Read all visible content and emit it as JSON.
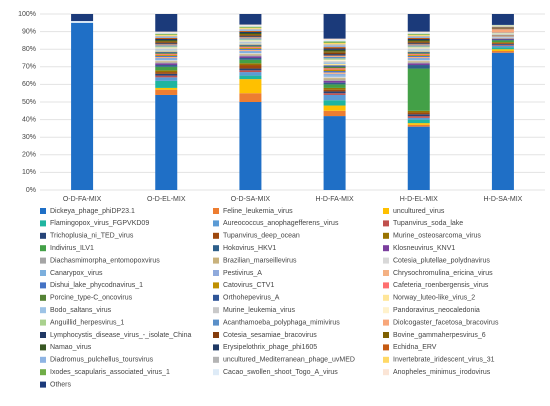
{
  "chart_data": {
    "type": "stacked_bar",
    "categories": [
      "O-D-FA-MIX",
      "O-D-EL-MIX",
      "O-D-SA-MIX",
      "H-D-FA-MIX",
      "H-D-EL-MIX",
      "H-D-SA-MIX"
    ],
    "ylim": [
      0,
      100
    ],
    "yticks": [
      {
        "value": 0,
        "label": "0%"
      },
      {
        "value": 10,
        "label": "10%"
      },
      {
        "value": 20,
        "label": "20%"
      },
      {
        "value": 30,
        "label": "30%"
      },
      {
        "value": 40,
        "label": "40%"
      },
      {
        "value": 50,
        "label": "50%"
      },
      {
        "value": 60,
        "label": "60%"
      },
      {
        "value": 70,
        "label": "70%"
      },
      {
        "value": 80,
        "label": "80%"
      },
      {
        "value": 90,
        "label": "90%"
      },
      {
        "value": 100,
        "label": "100%"
      }
    ],
    "grid": true,
    "series": [
      {
        "name": "Dickeya_phage_phiDP23.1",
        "color": "#1f6fc6",
        "values": [
          95,
          54,
          50,
          42,
          36,
          78
        ]
      },
      {
        "name": "Feline_leukemia_virus",
        "color": "#ed7d31",
        "values": [
          0,
          3,
          5,
          3,
          1,
          1
        ]
      },
      {
        "name": "uncultured_virus",
        "color": "#ffc000",
        "values": [
          0,
          1,
          8,
          3,
          1,
          1
        ]
      },
      {
        "name": "Flamingopox_virus_FGPVKD09",
        "color": "#1fb5a0",
        "values": [
          0,
          4,
          2,
          3,
          2,
          1
        ]
      },
      {
        "name": "Aureococcus_anophagefferens_virus",
        "color": "#5b9bd5",
        "values": [
          0,
          2,
          2,
          3,
          1,
          1
        ]
      },
      {
        "name": "Tupanvirus_soda_lake",
        "color": "#c0504d",
        "values": [
          0,
          1,
          1,
          1,
          1,
          0.5
        ]
      },
      {
        "name": "Trichoplusia_ni_TED_virus",
        "color": "#264478",
        "values": [
          0,
          1,
          1,
          1,
          1,
          0.5
        ]
      },
      {
        "name": "Tupanvirus_deep_ocean",
        "color": "#9e480e",
        "values": [
          0,
          1,
          2,
          1,
          1,
          0.5
        ]
      },
      {
        "name": "Murine_osteosarcoma_virus",
        "color": "#997300",
        "values": [
          0,
          1,
          1,
          1,
          1,
          0.5
        ]
      },
      {
        "name": "Indivirus_ILV1",
        "color": "#43a047",
        "values": [
          0,
          2,
          2,
          2,
          24,
          1
        ]
      },
      {
        "name": "Hokovirus_HKV1",
        "color": "#2e5f8a",
        "values": [
          0,
          1,
          1,
          1,
          2,
          0.5
        ]
      },
      {
        "name": "Klosneuvirus_KNV1",
        "color": "#7b3f9e",
        "values": [
          0,
          1,
          1,
          1,
          1,
          0.5
        ]
      },
      {
        "name": "Diachasmimorpha_entomopoxvirus",
        "color": "#a5a5a5",
        "values": [
          0,
          0.6,
          0.6,
          0.8,
          0.6,
          0.2
        ]
      },
      {
        "name": "Brazilian_marseillevirus",
        "color": "#c9b27c",
        "values": [
          0,
          0.6,
          0.6,
          0.8,
          0.6,
          0.2
        ]
      },
      {
        "name": "Cotesia_plutellae_polydnavirus",
        "color": "#d8d8d8",
        "values": [
          0,
          0.6,
          0.6,
          0.8,
          0.6,
          0.2
        ]
      },
      {
        "name": "Canarypox_virus",
        "color": "#7cafdd",
        "values": [
          0,
          0.6,
          0.6,
          0.8,
          0.6,
          0.2
        ]
      },
      {
        "name": "Pestivirus_A",
        "color": "#8faadc",
        "values": [
          0,
          0.6,
          0.6,
          0.8,
          0.6,
          0.2
        ]
      },
      {
        "name": "Chrysochromulina_ericina_virus",
        "color": "#f4b183",
        "values": [
          0,
          0.6,
          0.6,
          0.8,
          0.6,
          0.2
        ]
      },
      {
        "name": "Dishui_lake_phycodnavirus_1",
        "color": "#4472c4",
        "values": [
          0,
          0.6,
          0.6,
          0.8,
          0.6,
          0.2
        ]
      },
      {
        "name": "Catovirus_CTV1",
        "color": "#bf8f00",
        "values": [
          0,
          0.6,
          0.6,
          0.8,
          0.6,
          0.2
        ]
      },
      {
        "name": "Cafeteria_roenbergensis_virus",
        "color": "#ff6f6f",
        "values": [
          0,
          0.6,
          0.6,
          0.8,
          0.6,
          0.2
        ]
      },
      {
        "name": "Porcine_type-C_oncovirus",
        "color": "#548235",
        "values": [
          0,
          0.6,
          0.6,
          0.8,
          0.6,
          0.2
        ]
      },
      {
        "name": "Orthohepevirus_A",
        "color": "#2f5597",
        "values": [
          0,
          0.6,
          0.6,
          0.8,
          0.6,
          0.2
        ]
      },
      {
        "name": "Norway_luteo-like_virus_2",
        "color": "#ffe699",
        "values": [
          0,
          0.6,
          0.6,
          0.8,
          0.6,
          0.2
        ]
      },
      {
        "name": "Bodo_saltans_virus",
        "color": "#9dc3e6",
        "values": [
          0,
          0.6,
          0.6,
          0.8,
          0.6,
          0.2
        ]
      },
      {
        "name": "Murine_leukemia_virus",
        "color": "#c9c9c9",
        "values": [
          0,
          0.6,
          0.6,
          0.8,
          0.6,
          0.2
        ]
      },
      {
        "name": "Pandoravirus_neocaledonia",
        "color": "#fff2cc",
        "values": [
          0,
          0.6,
          0.6,
          0.8,
          0.6,
          0.2
        ]
      },
      {
        "name": "Anguillid_herpesvirus_1",
        "color": "#a9d18e",
        "values": [
          0,
          0.6,
          0.6,
          0.8,
          0.6,
          0.2
        ]
      },
      {
        "name": "Acanthamoeba_polyphaga_mimivirus",
        "color": "#5a8fc8",
        "values": [
          0,
          0.6,
          0.6,
          0.8,
          0.6,
          0.2
        ]
      },
      {
        "name": "Diolcogaster_facetosa_bracovirus",
        "color": "#f8a77a",
        "values": [
          0,
          0.6,
          0.6,
          0.8,
          0.6,
          2
        ]
      },
      {
        "name": "Lymphocystis_disease_virus_-_isolate_China",
        "color": "#203864",
        "values": [
          0,
          0.6,
          0.6,
          0.8,
          0.6,
          0.2
        ]
      },
      {
        "name": "Cotesia_sesamiae_bracovirus",
        "color": "#843c0c",
        "values": [
          0,
          0.6,
          0.6,
          0.8,
          0.6,
          0.2
        ]
      },
      {
        "name": "Bovine_gammaherpesvirus_6",
        "color": "#7f6000",
        "values": [
          0,
          0.6,
          0.6,
          0.8,
          0.6,
          0.2
        ]
      },
      {
        "name": "Namao_virus",
        "color": "#385723",
        "values": [
          0,
          0.6,
          0.6,
          0.8,
          0.6,
          0.2
        ]
      },
      {
        "name": "Erysipelothrix_phage_phi1605",
        "color": "#1f3864",
        "values": [
          0,
          0.6,
          0.6,
          0.8,
          0.6,
          0.2
        ]
      },
      {
        "name": "Echidna_ERV",
        "color": "#c55a11",
        "values": [
          0,
          0.6,
          0.6,
          0.8,
          0.6,
          0.2
        ]
      },
      {
        "name": "Diadromus_pulchellus_toursvirus",
        "color": "#8eb4e3",
        "values": [
          0,
          0.6,
          0.6,
          0.8,
          0.6,
          0.2
        ]
      },
      {
        "name": "uncultured_Mediterranean_phage_uvMED",
        "color": "#b4b4b4",
        "values": [
          0,
          0.6,
          0.6,
          0.8,
          0.6,
          0.2
        ]
      },
      {
        "name": "Invertebrate_iridescent_virus_31",
        "color": "#ffd966",
        "values": [
          0,
          0.6,
          0.6,
          0.8,
          0.6,
          0.2
        ]
      },
      {
        "name": "Ixodes_scapularis_associated_virus_1",
        "color": "#70ad47",
        "values": [
          0,
          0.6,
          0.6,
          0.8,
          0.6,
          0.2
        ]
      },
      {
        "name": "Cacao_swollen_shoot_Togo_A_virus",
        "color": "#deebf7",
        "values": [
          1,
          0.6,
          0.6,
          0.8,
          0.6,
          0.2
        ]
      },
      {
        "name": "Anopheles_minimus_irodovirus",
        "color": "#fbe5d6",
        "values": [
          0,
          0.6,
          0.6,
          0.8,
          0.6,
          0.2
        ]
      },
      {
        "name": "Others",
        "color": "#1b3a7a",
        "values": [
          4,
          10,
          6,
          14,
          10,
          6.2
        ]
      }
    ]
  }
}
